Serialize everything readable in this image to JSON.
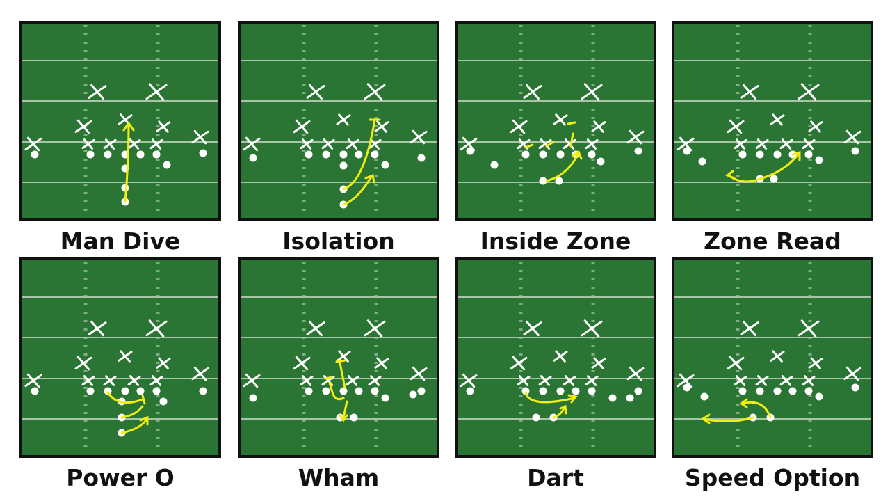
{
  "plays": [
    "Man Dive",
    "Isolation",
    "Inside Zone",
    "Zone Read",
    "Power O",
    "Wham",
    "Dart",
    "Speed Option"
  ]
}
